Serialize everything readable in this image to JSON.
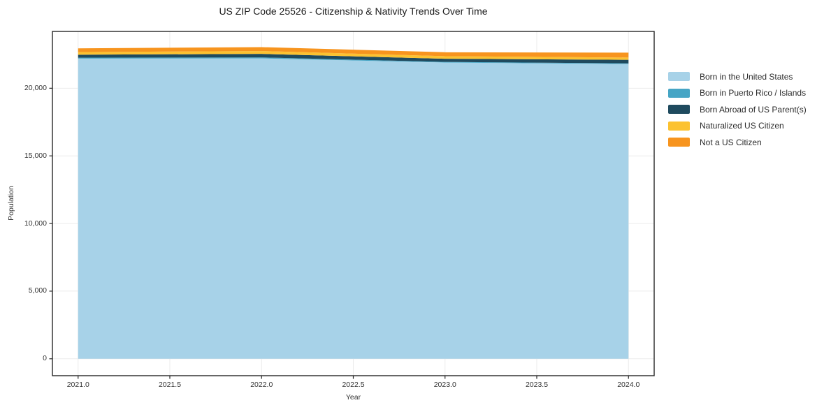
{
  "title": "US ZIP Code 25526 - Citizenship & Nativity Trends Over Time",
  "chart_data": {
    "type": "area",
    "stacked": true,
    "title": "US ZIP Code 25526 - Citizenship & Nativity Trends Over Time",
    "xlabel": "Year",
    "ylabel": "Population",
    "x": [
      2021,
      2022,
      2023,
      2024
    ],
    "series": [
      {
        "name": "Born in the United States",
        "color": "#a7d2e8",
        "values": [
          22190,
          22210,
          21900,
          21790
        ]
      },
      {
        "name": "Born in Puerto Rico / Islands",
        "color": "#46a5c5",
        "values": [
          70,
          70,
          50,
          50
        ]
      },
      {
        "name": "Born Abroad of US Parent(s)",
        "color": "#1f4a5e",
        "values": [
          220,
          260,
          230,
          260
        ]
      },
      {
        "name": "Naturalized US Citizen",
        "color": "#fcc230",
        "values": [
          190,
          210,
          190,
          170
        ]
      },
      {
        "name": "Not a US Citizen",
        "color": "#f7941e",
        "values": [
          280,
          290,
          290,
          360
        ]
      }
    ],
    "totals": [
      22950,
      23040,
      22660,
      22630
    ],
    "x_ticks": [
      "2021.0",
      "2021.5",
      "2022.0",
      "2022.5",
      "2023.0",
      "2023.5",
      "2024.0"
    ],
    "x_tick_values": [
      2021,
      2021.5,
      2022,
      2022.5,
      2023,
      2023.5,
      2024
    ],
    "y_ticks": [
      "0",
      "5,000",
      "10,000",
      "15,000",
      "20,000"
    ],
    "y_tick_values": [
      0,
      5000,
      10000,
      15000,
      20000
    ],
    "xlim": [
      2020.86,
      2024.14
    ],
    "ylim": [
      -1250,
      24200
    ],
    "grid": true,
    "grid_color": "#ebebeb",
    "spine_color": "#262626",
    "legend_position": "right-outside",
    "legend_frame": false
  }
}
